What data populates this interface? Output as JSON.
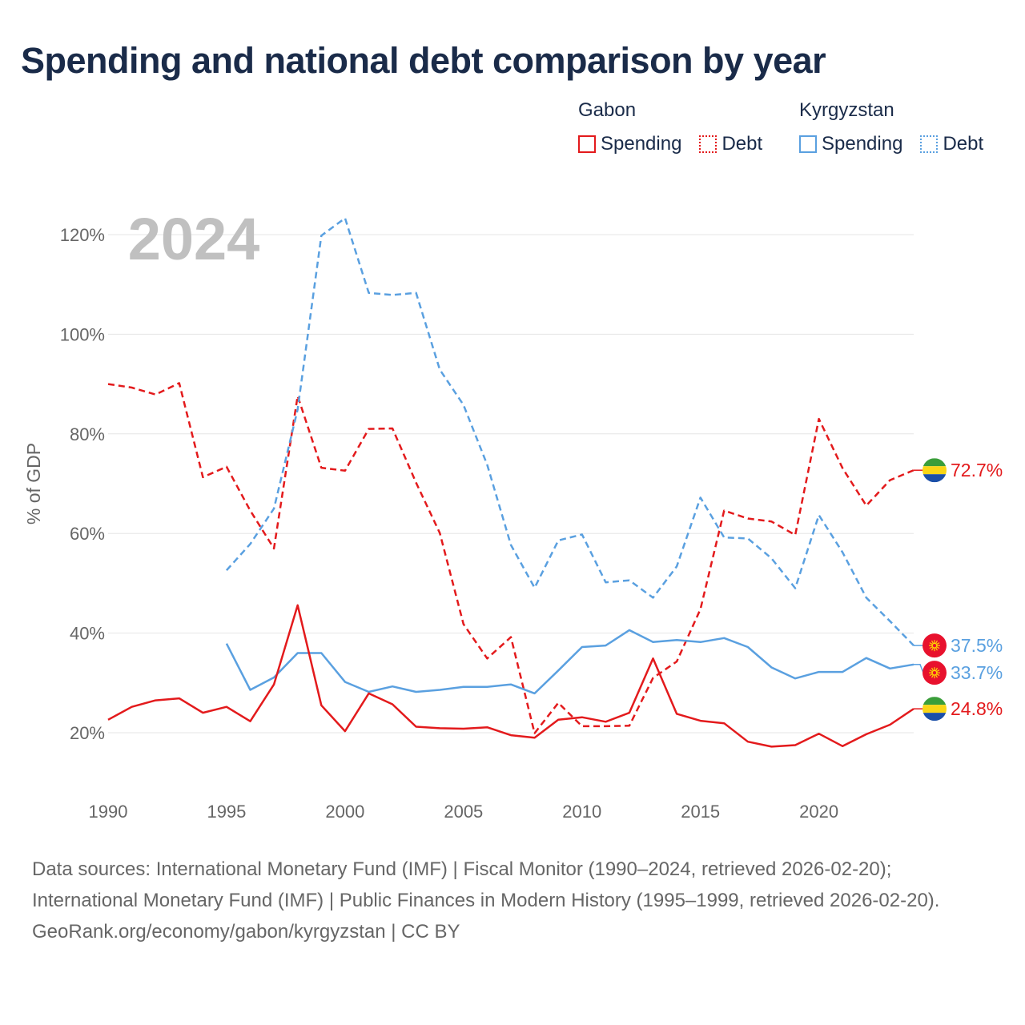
{
  "title": "Spending and national debt comparison by year",
  "legend": [
    {
      "country": "Gabon",
      "color": "#e31a1c",
      "items": [
        {
          "label": "Spending",
          "style": "solid"
        },
        {
          "label": "Debt",
          "style": "dotted"
        }
      ]
    },
    {
      "country": "Kyrgyzstan",
      "color": "#5aa0e0",
      "items": [
        {
          "label": "Spending",
          "style": "solid"
        },
        {
          "label": "Debt",
          "style": "dotted"
        }
      ]
    }
  ],
  "sources": {
    "line1": "Data sources: International Monetary Fund (IMF) | Fiscal Monitor (1990–2024, retrieved 2026-02-20); International Monetary Fund (IMF) | Public Finances in Modern History (1995–1999, retrieved 2026-02-20).",
    "line2": "GeoRank.org/economy/gabon/kyrgyzstan | CC BY"
  },
  "chart_data": {
    "type": "line",
    "year_watermark": "2024",
    "ylabel": "% of GDP",
    "xlabel": "",
    "xlim": [
      1990,
      2024
    ],
    "ylim": [
      10,
      125
    ],
    "x_ticks": [
      1990,
      1995,
      2000,
      2005,
      2010,
      2015,
      2020
    ],
    "y_ticks": [
      20,
      40,
      60,
      80,
      100,
      120
    ],
    "y_tick_labels": [
      "20%",
      "40%",
      "60%",
      "80%",
      "100%",
      "120%"
    ],
    "grid": true,
    "series": [
      {
        "name": "Gabon Debt",
        "country": "Gabon",
        "metric": "Debt",
        "color": "#e31a1c",
        "dash": "dashed",
        "end_label": "72.7%",
        "flag": "gabon",
        "x": [
          1990,
          1991,
          1992,
          1993,
          1994,
          1995,
          1996,
          1997,
          1998,
          1999,
          2000,
          2001,
          2002,
          2003,
          2004,
          2005,
          2006,
          2007,
          2008,
          2009,
          2010,
          2011,
          2012,
          2013,
          2014,
          2015,
          2016,
          2017,
          2018,
          2019,
          2020,
          2021,
          2022,
          2023,
          2024
        ],
        "values": [
          90,
          89.3,
          87.9,
          90.2,
          71.3,
          73.4,
          64.6,
          57,
          87.6,
          73.2,
          72.6,
          81,
          81.1,
          70.2,
          60.1,
          41.8,
          34.9,
          39.2,
          19.9,
          26,
          21.3,
          21.3,
          21.4,
          31,
          34.3,
          44.8,
          64.6,
          63,
          62.4,
          59.7,
          83,
          73.1,
          65.6,
          70.7,
          72.7
        ]
      },
      {
        "name": "Kyrgyzstan Debt",
        "country": "Kyrgyzstan",
        "metric": "Debt",
        "color": "#5aa0e0",
        "dash": "dashed",
        "end_label": "37.5%",
        "flag": "kyrgyzstan",
        "x": [
          1995,
          1996,
          1997,
          1998,
          1999,
          2000,
          2001,
          2002,
          2003,
          2004,
          2005,
          2006,
          2007,
          2008,
          2009,
          2010,
          2011,
          2012,
          2013,
          2014,
          2015,
          2016,
          2017,
          2018,
          2019,
          2020,
          2021,
          2022,
          2023,
          2024
        ],
        "values": [
          52.6,
          57.9,
          65,
          84.9,
          119.8,
          123.3,
          108.3,
          107.9,
          108.3,
          92.9,
          85.8,
          73.8,
          57.7,
          49.1,
          58.6,
          59.8,
          50.2,
          50.6,
          47.1,
          53.4,
          67.2,
          59.2,
          59,
          55,
          49,
          63.7,
          56.2,
          47.1,
          42.4,
          37.5
        ]
      },
      {
        "name": "Kyrgyzstan Spending",
        "country": "Kyrgyzstan",
        "metric": "Spending",
        "color": "#5aa0e0",
        "dash": "solid",
        "end_label": "33.7%",
        "flag": "kyrgyzstan",
        "x": [
          1995,
          1996,
          1997,
          1998,
          1999,
          2000,
          2001,
          2002,
          2003,
          2004,
          2005,
          2006,
          2007,
          2008,
          2009,
          2010,
          2011,
          2012,
          2013,
          2014,
          2015,
          2016,
          2017,
          2018,
          2019,
          2020,
          2021,
          2022,
          2023,
          2024
        ],
        "values": [
          37.9,
          28.6,
          31.1,
          36,
          36,
          30.2,
          28.2,
          29.3,
          28.2,
          28.6,
          29.2,
          29.2,
          29.7,
          27.9,
          32.5,
          37.2,
          37.5,
          40.6,
          38.2,
          38.6,
          38.2,
          39,
          37.2,
          33.1,
          30.9,
          32.2,
          32.2,
          35,
          32.9,
          33.7
        ]
      },
      {
        "name": "Gabon Spending",
        "country": "Gabon",
        "metric": "Spending",
        "color": "#e31a1c",
        "dash": "solid",
        "end_label": "24.8%",
        "flag": "gabon",
        "x": [
          1990,
          1991,
          1992,
          1993,
          1994,
          1995,
          1996,
          1997,
          1998,
          1999,
          2000,
          2001,
          2002,
          2003,
          2004,
          2005,
          2006,
          2007,
          2008,
          2009,
          2010,
          2011,
          2012,
          2013,
          2014,
          2015,
          2016,
          2017,
          2018,
          2019,
          2020,
          2021,
          2022,
          2023,
          2024
        ],
        "values": [
          22.6,
          25.2,
          26.5,
          26.9,
          24,
          25.2,
          22.3,
          29.7,
          45.6,
          25.5,
          20.3,
          27.9,
          25.7,
          21.2,
          20.9,
          20.8,
          21.1,
          19.5,
          19,
          22.6,
          23.1,
          22.2,
          24,
          34.9,
          23.8,
          22.4,
          21.9,
          18.2,
          17.2,
          17.5,
          19.8,
          17.3,
          19.7,
          21.6,
          24.8
        ]
      }
    ]
  }
}
